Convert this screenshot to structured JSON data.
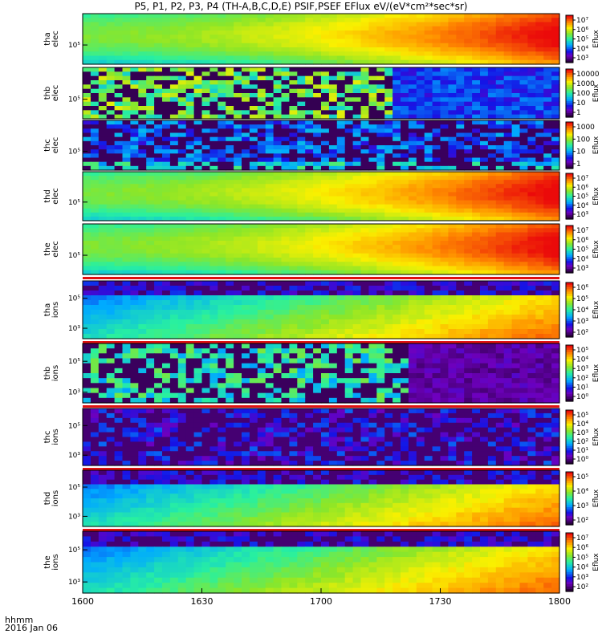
{
  "title": "P5, P1, P2, P3, P4 (TH-A,B,C,D,E) PSIF,PSEF EFlux eV/(eV*cm²*sec*sr)",
  "time_label": "hhmm",
  "date_label": "2016 Jan 06",
  "chart_data": {
    "type": "heatmap",
    "x_ticks": [
      "1600",
      "1630",
      "1700",
      "1730",
      "1800"
    ],
    "xlim": [
      "1600",
      "1800"
    ],
    "panels": [
      {
        "id": "tha-elec",
        "label": [
          "tha",
          "elec"
        ],
        "style": "smooth",
        "y_ticks": [
          "10⁵"
        ],
        "colorbar": {
          "ticks": [
            "10⁷",
            "10⁶",
            "10⁵",
            "10⁴",
            "10³"
          ],
          "title": "Eflux"
        },
        "spacecraft_bar": false
      },
      {
        "id": "thb-elec",
        "label": [
          "thb",
          "elec"
        ],
        "style": "noisy",
        "y_ticks": [
          "10⁵"
        ],
        "colorbar": {
          "ticks": [
            "10000",
            "1000",
            "100",
            "10",
            "1"
          ],
          "title": "Eflux"
        },
        "spacecraft_bar": false
      },
      {
        "id": "thc-elec",
        "label": [
          "thc",
          "elec"
        ],
        "style": "noisy-dark",
        "y_ticks": [
          "10⁵"
        ],
        "colorbar": {
          "ticks": [
            "1000",
            "100",
            "10",
            "1"
          ],
          "title": "Eflux"
        },
        "spacecraft_bar": false
      },
      {
        "id": "thd-elec",
        "label": [
          "thd",
          "elec"
        ],
        "style": "smooth",
        "y_ticks": [
          "10⁵"
        ],
        "colorbar": {
          "ticks": [
            "10⁷",
            "10⁶",
            "10⁵",
            "10⁴",
            "10³"
          ],
          "title": "Eflux"
        },
        "spacecraft_bar": false
      },
      {
        "id": "the-elec",
        "label": [
          "the",
          "elec"
        ],
        "style": "smooth",
        "y_ticks": [
          "10⁵"
        ],
        "colorbar": {
          "ticks": [
            "10⁷",
            "10⁶",
            "10⁵",
            "10⁴",
            "10³"
          ],
          "title": "Eflux"
        },
        "spacecraft_bar": true
      },
      {
        "id": "tha-ions",
        "label": [
          "tha",
          "ions"
        ],
        "style": "ion",
        "y_ticks": [
          "10⁵",
          "10³"
        ],
        "colorbar": {
          "ticks": [
            "10⁶",
            "10⁵",
            "10⁴",
            "10³",
            "10²"
          ],
          "title": "Eflux"
        },
        "spacecraft_bar": true
      },
      {
        "id": "thb-ions",
        "label": [
          "thb",
          "ions"
        ],
        "style": "ion-noisy",
        "y_ticks": [
          "10⁵",
          "10³"
        ],
        "colorbar": {
          "ticks": [
            "10⁵",
            "10⁴",
            "10³",
            "10²",
            "10¹",
            "10⁰"
          ],
          "title": "Eflux"
        },
        "spacecraft_bar": true
      },
      {
        "id": "thc-ions",
        "label": [
          "thc",
          "ions"
        ],
        "style": "ion-dark",
        "y_ticks": [
          "10⁵",
          "10³"
        ],
        "colorbar": {
          "ticks": [
            "10⁵",
            "10⁴",
            "10³",
            "10²",
            "10¹",
            "10⁰"
          ],
          "title": "Eflux"
        },
        "spacecraft_bar": true
      },
      {
        "id": "thd-ions",
        "label": [
          "thd",
          "ions"
        ],
        "style": "ion",
        "y_ticks": [
          "10⁵",
          "10³"
        ],
        "colorbar": {
          "ticks": [
            "10⁵",
            "10⁴",
            "10³",
            "10²"
          ],
          "title": "Eflux"
        },
        "spacecraft_bar": true
      },
      {
        "id": "the-ions",
        "label": [
          "the",
          "ions"
        ],
        "style": "ion",
        "y_ticks": [
          "10⁵",
          "10³"
        ],
        "colorbar": {
          "ticks": [
            "10⁷",
            "10⁶",
            "10⁵",
            "10⁴",
            "10³",
            "10²"
          ],
          "title": "Eflux"
        },
        "spacecraft_bar": false
      }
    ]
  }
}
